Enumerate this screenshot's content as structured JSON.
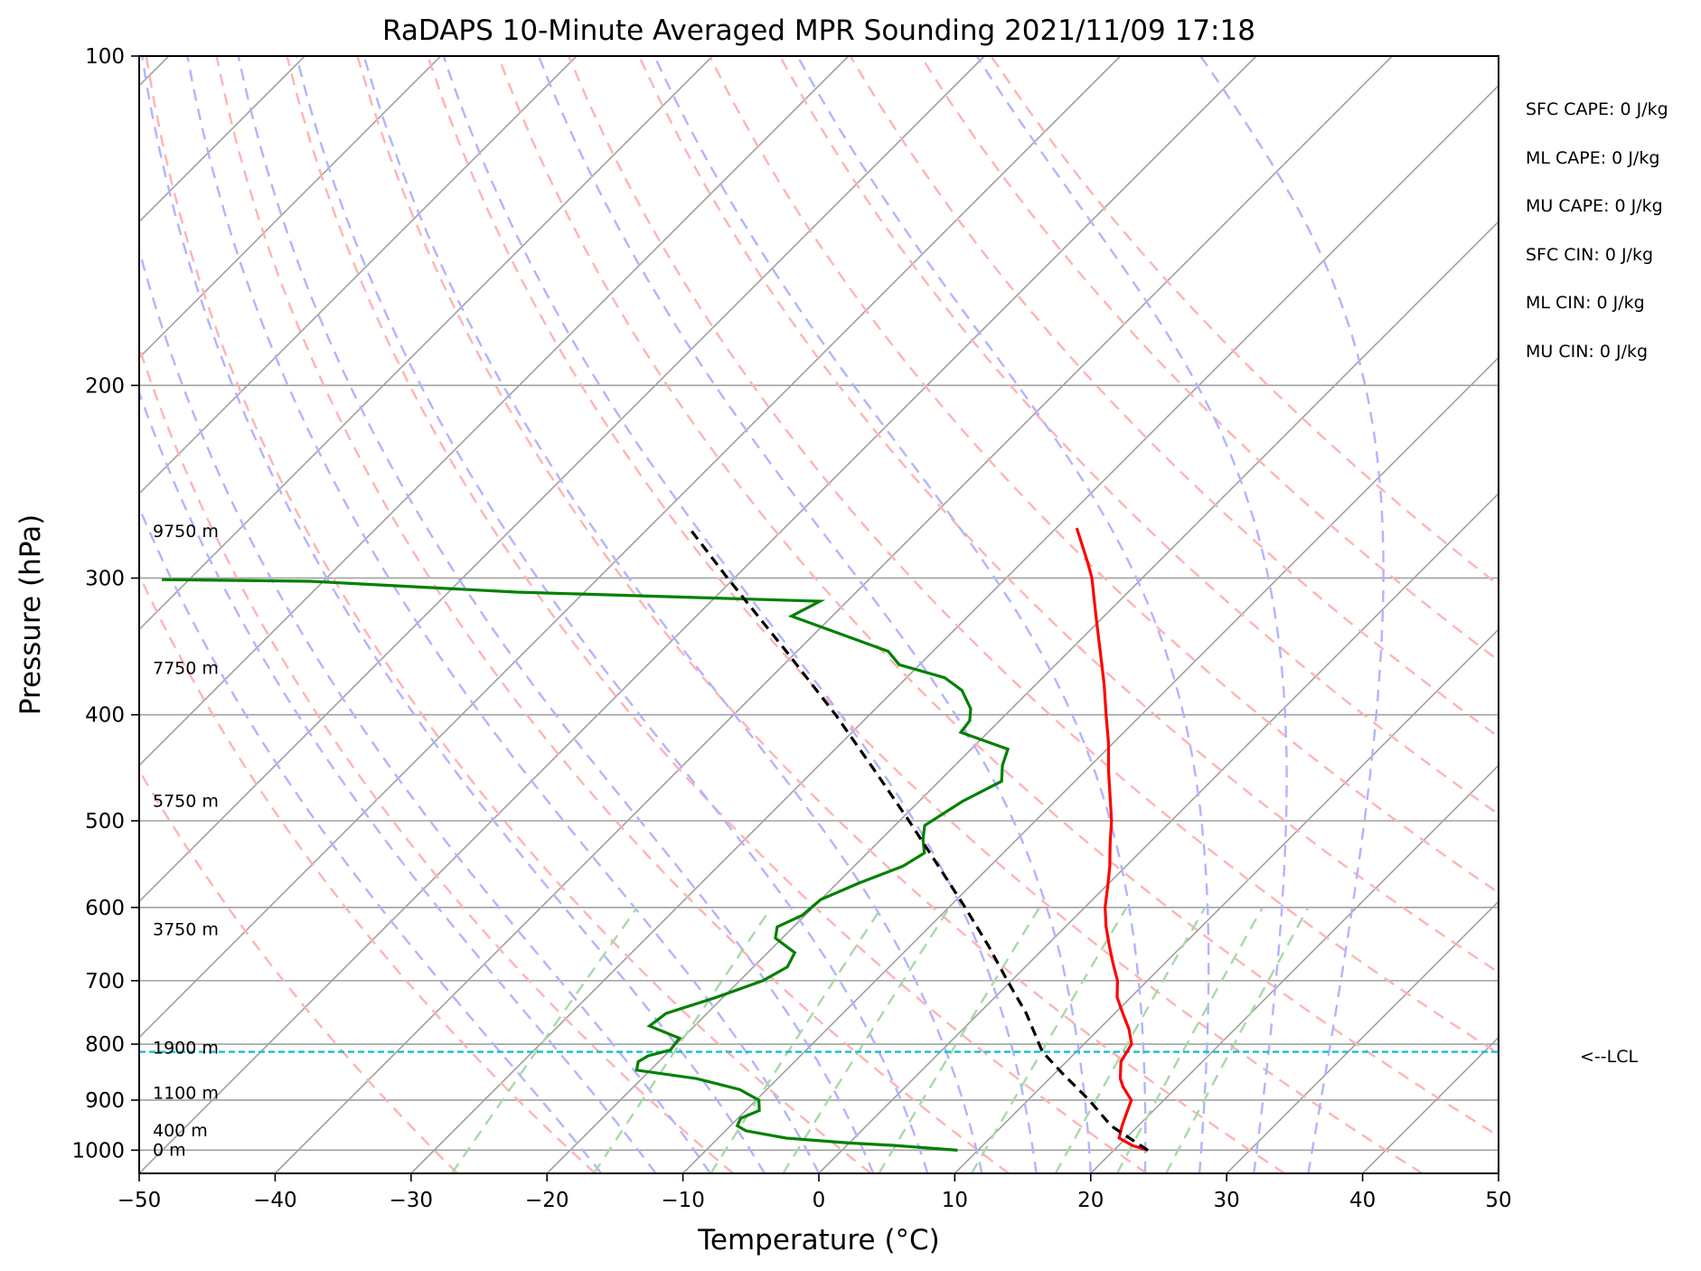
{
  "chart_data": {
    "type": "line",
    "title": "RaDAPS 10-Minute Averaged MPR Sounding 2021/11/09 17:18",
    "xlabel": "Temperature (°C)",
    "ylabel": "Pressure (hPa)",
    "xlim": [
      -50,
      50
    ],
    "ylim": [
      1050,
      100
    ],
    "y_scale": "log",
    "skew": "skew-T log-P diagram",
    "x_ticks": [
      "−50",
      "−40",
      "−30",
      "−20",
      "−10",
      "0",
      "10",
      "20",
      "30",
      "40",
      "50"
    ],
    "y_ticks": [
      "100",
      "200",
      "300",
      "400",
      "500",
      "600",
      "700",
      "800",
      "900",
      "1000"
    ],
    "grid": true,
    "height_labels": [
      {
        "text": "9750 m",
        "pressure": 272
      },
      {
        "text": "7750 m",
        "pressure": 363
      },
      {
        "text": "5750 m",
        "pressure": 480
      },
      {
        "text": "3750 m",
        "pressure": 629
      },
      {
        "text": "1900 m",
        "pressure": 807
      },
      {
        "text": "1100 m",
        "pressure": 887
      },
      {
        "text": "400 m",
        "pressure": 960
      },
      {
        "text": "0 m",
        "pressure": 1000
      }
    ],
    "indices": [
      "SFC CAPE: 0 J/kg",
      "ML CAPE: 0 J/kg",
      "MU CAPE: 0 J/kg",
      "SFC CIN: 0 J/kg",
      "ML CIN: 0 J/kg",
      "MU CIN: 0 J/kg"
    ],
    "lcl": {
      "label": "<--LCL",
      "pressure": 813
    },
    "colors": {
      "temperature": "#ff0000",
      "dewpoint": "#008000",
      "parcel": "#000000",
      "lcl": "#17becf",
      "dry_adiabat": "#ffb3b3",
      "moist_adiabat": "#b3b3ff",
      "mixing_ratio": "#a8d8a8",
      "isotherm": "#a0a0a0"
    },
    "series": [
      {
        "type": "temperature",
        "points": [
          {
            "p": 1000,
            "t": 22.5
          },
          {
            "p": 990,
            "t": 21.0
          },
          {
            "p": 975,
            "t": 19.5
          },
          {
            "p": 950,
            "t": 18.8
          },
          {
            "p": 925,
            "t": 18.2
          },
          {
            "p": 900,
            "t": 17.6
          },
          {
            "p": 875,
            "t": 16.0
          },
          {
            "p": 860,
            "t": 15.2
          },
          {
            "p": 830,
            "t": 14.0
          },
          {
            "p": 800,
            "t": 13.5
          },
          {
            "p": 775,
            "t": 12.2
          },
          {
            "p": 750,
            "t": 10.6
          },
          {
            "p": 725,
            "t": 9.0
          },
          {
            "p": 700,
            "t": 7.8
          },
          {
            "p": 675,
            "t": 6.2
          },
          {
            "p": 650,
            "t": 4.6
          },
          {
            "p": 625,
            "t": 3.0
          },
          {
            "p": 600,
            "t": 1.5
          },
          {
            "p": 575,
            "t": 0.2
          },
          {
            "p": 550,
            "t": -1.2
          },
          {
            "p": 525,
            "t": -2.8
          },
          {
            "p": 500,
            "t": -4.4
          },
          {
            "p": 475,
            "t": -6.3
          },
          {
            "p": 450,
            "t": -8.3
          },
          {
            "p": 425,
            "t": -10.3
          },
          {
            "p": 400,
            "t": -12.6
          },
          {
            "p": 375,
            "t": -15.0
          },
          {
            "p": 350,
            "t": -17.7
          },
          {
            "p": 325,
            "t": -20.6
          },
          {
            "p": 300,
            "t": -23.7
          },
          {
            "p": 290,
            "t": -25.2
          },
          {
            "p": 270,
            "t": -28.5
          }
        ]
      },
      {
        "type": "dewpoint",
        "points": [
          {
            "p": 1000,
            "t": 8.5
          },
          {
            "p": 990,
            "t": 3.5
          },
          {
            "p": 985,
            "t": 0.0
          },
          {
            "p": 975,
            "t": -5.0
          },
          {
            "p": 960,
            "t": -8.5
          },
          {
            "p": 950,
            "t": -9.5
          },
          {
            "p": 935,
            "t": -9.8
          },
          {
            "p": 920,
            "t": -9.0
          },
          {
            "p": 900,
            "t": -9.8
          },
          {
            "p": 880,
            "t": -12.0
          },
          {
            "p": 860,
            "t": -16.0
          },
          {
            "p": 845,
            "t": -21.0
          },
          {
            "p": 830,
            "t": -21.5
          },
          {
            "p": 820,
            "t": -21.2
          },
          {
            "p": 810,
            "t": -20.0
          },
          {
            "p": 790,
            "t": -20.2
          },
          {
            "p": 770,
            "t": -23.3
          },
          {
            "p": 750,
            "t": -23.0
          },
          {
            "p": 725,
            "t": -20.5
          },
          {
            "p": 700,
            "t": -18.3
          },
          {
            "p": 680,
            "t": -17.5
          },
          {
            "p": 660,
            "t": -18.0
          },
          {
            "p": 640,
            "t": -20.5
          },
          {
            "p": 625,
            "t": -21.2
          },
          {
            "p": 610,
            "t": -20.2
          },
          {
            "p": 590,
            "t": -20.0
          },
          {
            "p": 570,
            "t": -18.4
          },
          {
            "p": 550,
            "t": -16.4
          },
          {
            "p": 535,
            "t": -15.8
          },
          {
            "p": 520,
            "t": -16.9
          },
          {
            "p": 505,
            "t": -17.8
          },
          {
            "p": 480,
            "t": -16.8
          },
          {
            "p": 460,
            "t": -15.4
          },
          {
            "p": 445,
            "t": -16.5
          },
          {
            "p": 430,
            "t": -17.3
          },
          {
            "p": 415,
            "t": -22.0
          },
          {
            "p": 405,
            "t": -22.2
          },
          {
            "p": 395,
            "t": -23.0
          },
          {
            "p": 380,
            "t": -25.0
          },
          {
            "p": 370,
            "t": -27.2
          },
          {
            "p": 360,
            "t": -31.5
          },
          {
            "p": 350,
            "t": -33.3
          },
          {
            "p": 325,
            "t": -43.0
          },
          {
            "p": 315,
            "t": -42.0
          },
          {
            "p": 309,
            "t": -65.0
          },
          {
            "p": 302,
            "t": -81.0
          },
          {
            "p": 301,
            "t": -92.0
          }
        ]
      },
      {
        "type": "parcel",
        "points": [
          {
            "p": 1000,
            "t": 22.5
          },
          {
            "p": 950,
            "t": 18.0
          },
          {
            "p": 900,
            "t": 14.5
          },
          {
            "p": 850,
            "t": 10.5
          },
          {
            "p": 813,
            "t": 7.5
          },
          {
            "p": 750,
            "t": 3.5
          },
          {
            "p": 700,
            "t": -0.3
          },
          {
            "p": 650,
            "t": -4.3
          },
          {
            "p": 600,
            "t": -8.8
          },
          {
            "p": 550,
            "t": -13.8
          },
          {
            "p": 500,
            "t": -19.3
          },
          {
            "p": 450,
            "t": -25.5
          },
          {
            "p": 400,
            "t": -32.5
          },
          {
            "p": 350,
            "t": -40.8
          },
          {
            "p": 300,
            "t": -50.5
          },
          {
            "p": 270,
            "t": -57.0
          }
        ]
      }
    ]
  }
}
